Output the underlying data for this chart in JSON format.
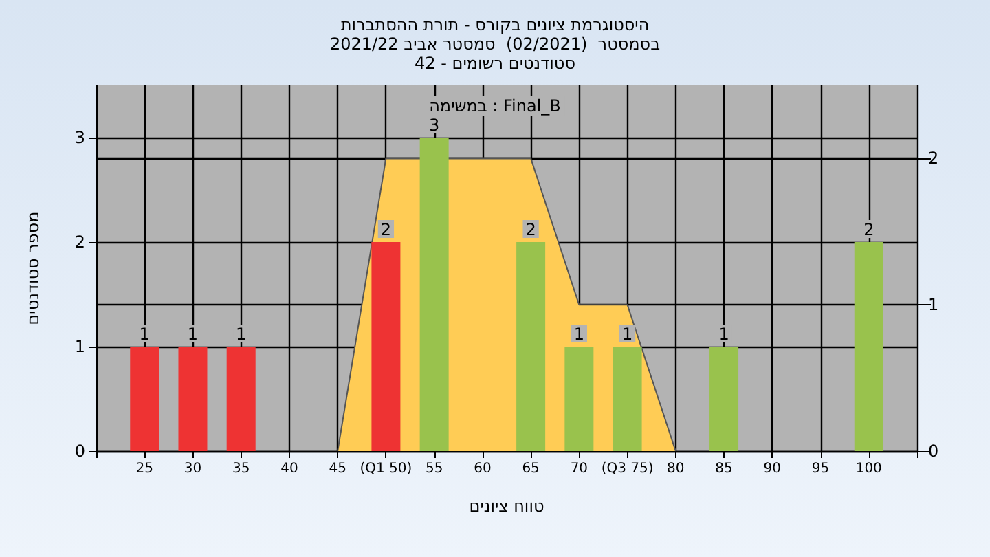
{
  "chart_data": {
    "type": "bar",
    "title": "היסטוגרמת ציונים בקורס - תורת ההסתברות",
    "subtitle": "בסמסטר  (02/2021)  סמסטר אביב 2021/22\nסטודנטים רשומים - 42",
    "xlabel": "טווח ציונים",
    "ylabel": "מספר סטודנטים",
    "annotations": [
      "במשימה : Final_B"
    ],
    "xlim": [
      20,
      105
    ],
    "xticks": [
      {
        "value": 20,
        "label": null
      },
      25,
      30,
      35,
      40,
      45,
      {
        "value": 50,
        "label": "(Q1 50)"
      },
      55,
      60,
      65,
      70,
      {
        "value": 75,
        "label": "(Q3 75)"
      },
      80,
      85,
      90,
      95,
      100,
      {
        "value": 105,
        "label": null
      }
    ],
    "ylim": [
      0,
      3.5
    ],
    "yticks": [
      0,
      1,
      2,
      3
    ],
    "y2lim": [
      0,
      2.5
    ],
    "y2ticks": [
      0,
      1,
      2
    ],
    "grid": true,
    "series": [
      {
        "type": "area",
        "axis": "y2",
        "color": "#ffcc55",
        "x": [
          45,
          50,
          65,
          70,
          75,
          80
        ],
        "values": [
          0,
          2,
          2,
          1,
          1,
          0
        ]
      },
      {
        "x": [
          25,
          30,
          35,
          50,
          55,
          65,
          70,
          75,
          85,
          100
        ],
        "values": [
          1,
          1,
          1,
          2,
          3,
          2,
          1,
          1,
          1,
          2
        ],
        "colors": [
          "#ee3333",
          "#ee3333",
          "#ee3333",
          "#ee3333",
          "#99c24d",
          "#99c24d",
          "#99c24d",
          "#99c24d",
          "#99c24d",
          "#99c24d"
        ],
        "value_labels": [
          "1",
          "1",
          "1",
          "2",
          "3",
          "2",
          "1",
          "1",
          "1",
          "2"
        ]
      }
    ]
  }
}
